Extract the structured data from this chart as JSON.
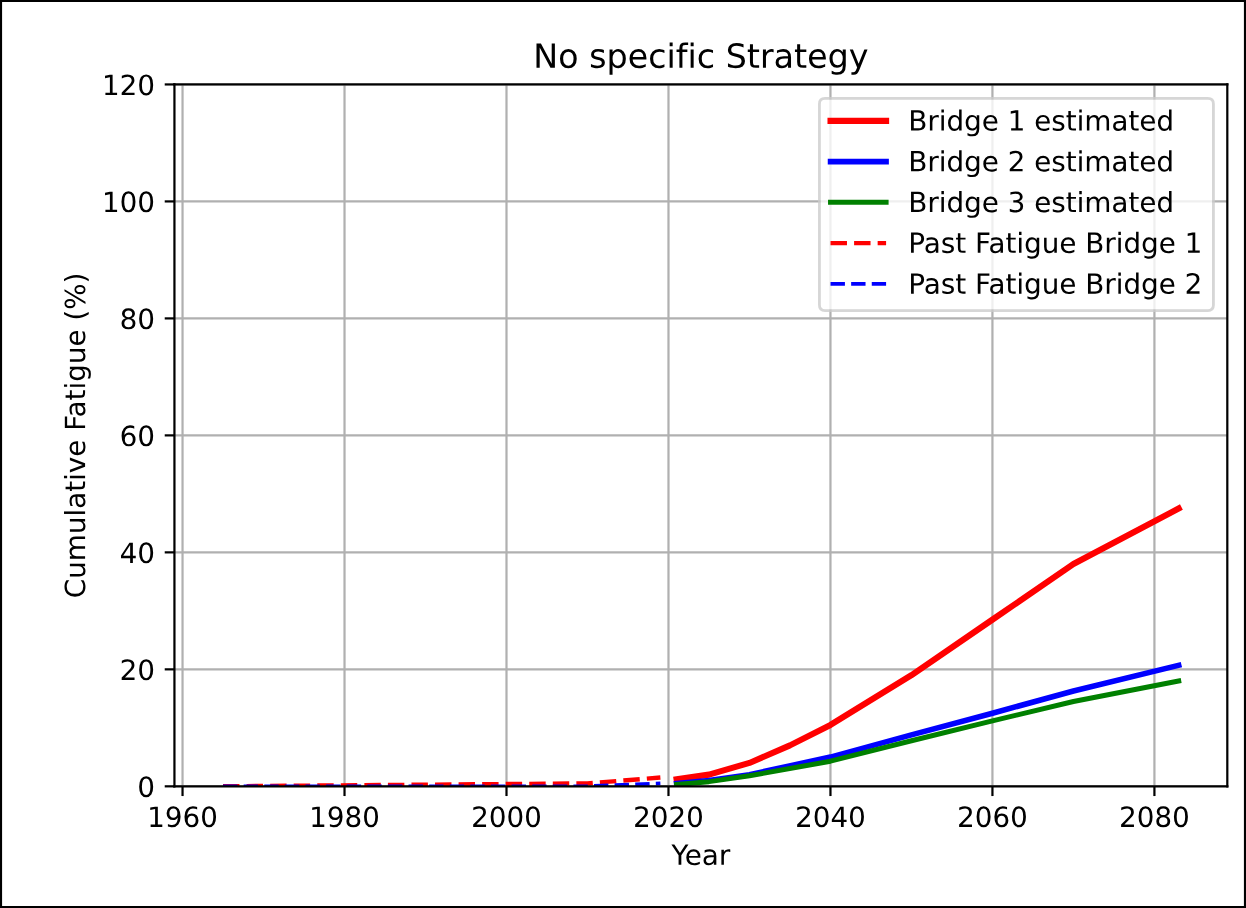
{
  "chart_data": {
    "type": "line",
    "title": "No specific Strategy",
    "xlabel": "Year",
    "ylabel": "Cumulative Fatigue (%)",
    "xlim": [
      1959,
      2089
    ],
    "xticks": [
      1960,
      1980,
      2000,
      2020,
      2040,
      2060,
      2080
    ],
    "ylim": [
      0,
      120
    ],
    "yticks": [
      0,
      20,
      40,
      60,
      80,
      100,
      120
    ],
    "grid": true,
    "legend": "top right",
    "series": [
      {
        "name": "Bridge 1 estimated",
        "color": "#ff0000",
        "line_style": "solid",
        "x": [
          2021,
          2025,
          2030,
          2035,
          2040,
          2050,
          2060,
          2070,
          2083
        ],
        "values": [
          1.2,
          2,
          4,
          7,
          10.5,
          19,
          28.5,
          38,
          47.5
        ]
      },
      {
        "name": "Bridge 2 estimated",
        "color": "#0000ff",
        "line_style": "solid",
        "x": [
          2021,
          2025,
          2030,
          2040,
          2050,
          2060,
          2070,
          2083
        ],
        "values": [
          0.5,
          1,
          2,
          5,
          8.8,
          12.5,
          16.3,
          20.7
        ]
      },
      {
        "name": "Bridge 3 estimated",
        "color": "#008000",
        "line_style": "solid",
        "x": [
          2021,
          2025,
          2030,
          2040,
          2050,
          2060,
          2070,
          2083
        ],
        "values": [
          0.3,
          0.8,
          1.8,
          4.3,
          7.8,
          11.2,
          14.5,
          18
        ]
      },
      {
        "name": "Past Fatigue Bridge 1",
        "color": "#ff0000",
        "line_style": "dashed",
        "x": [
          1965,
          2010,
          2019
        ],
        "values": [
          0,
          0.5,
          1.5
        ]
      },
      {
        "name": "Past Fatigue Bridge 2",
        "color": "#0000ff",
        "line_style": "dashed",
        "x": [
          1965,
          2010,
          2019
        ],
        "values": [
          0,
          0,
          0.5
        ]
      }
    ]
  }
}
